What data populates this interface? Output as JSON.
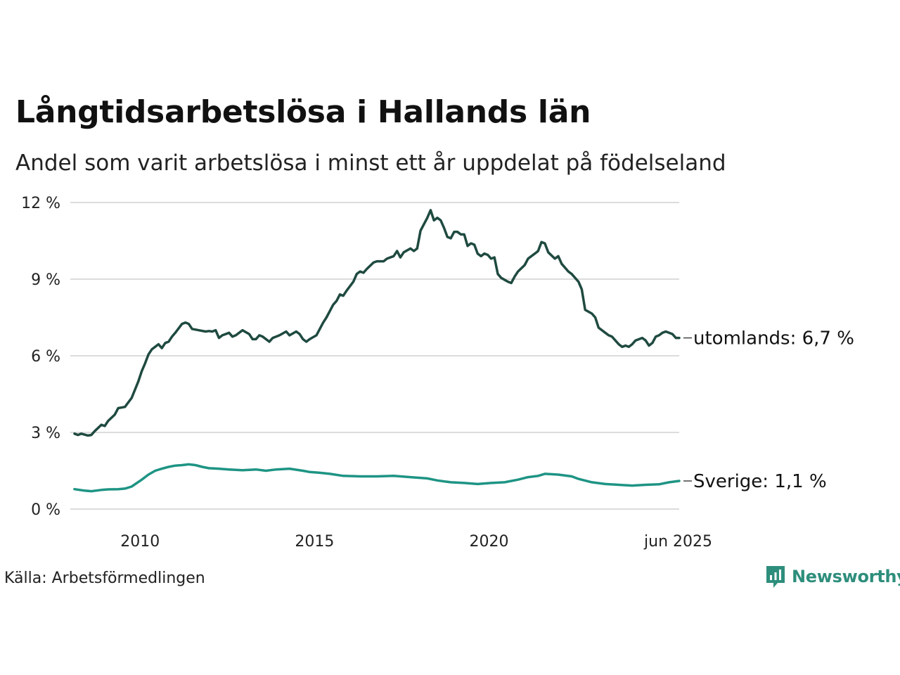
{
  "title": "Långtidsarbetslösa i Hallands län",
  "subtitle": "Andel som varit arbetslösa i minst ett år uppdelat på födelseland",
  "source": "Källa: Arbetsförmedlingen",
  "brand": {
    "name": "Newsworthy",
    "icon": "newsworthy-logo-icon",
    "color": "#2e8e7c"
  },
  "chart_data": {
    "type": "line",
    "xlim": [
      2008.0,
      2025.45
    ],
    "ylim": [
      0,
      12
    ],
    "y_ticks": [
      0,
      3,
      6,
      9,
      12
    ],
    "y_tick_labels": [
      "0 %",
      "3 %",
      "6 %",
      "9 %",
      "12 %"
    ],
    "x_ticks": [
      2010,
      2015,
      2020,
      2025.42
    ],
    "x_tick_labels": [
      "2010",
      "2015",
      "2020",
      "jun 2025"
    ],
    "grid": "horizontal",
    "series": [
      {
        "name": "utomlands",
        "end_label": "utomlands: 6,7 %",
        "color": "#1f4a40",
        "points": [
          [
            2008.0,
            2.95
          ],
          [
            2008.1,
            2.9
          ],
          [
            2008.2,
            2.95
          ],
          [
            2008.4,
            2.88
          ],
          [
            2008.5,
            2.9
          ],
          [
            2008.6,
            3.05
          ],
          [
            2008.8,
            3.3
          ],
          [
            2008.9,
            3.25
          ],
          [
            2009.0,
            3.45
          ],
          [
            2009.2,
            3.7
          ],
          [
            2009.3,
            3.95
          ],
          [
            2009.5,
            4.0
          ],
          [
            2009.7,
            4.35
          ],
          [
            2009.9,
            5.0
          ],
          [
            2010.0,
            5.4
          ],
          [
            2010.1,
            5.7
          ],
          [
            2010.2,
            6.05
          ],
          [
            2010.3,
            6.25
          ],
          [
            2010.5,
            6.45
          ],
          [
            2010.6,
            6.3
          ],
          [
            2010.7,
            6.5
          ],
          [
            2010.8,
            6.55
          ],
          [
            2010.9,
            6.75
          ],
          [
            2011.0,
            6.9
          ],
          [
            2011.2,
            7.25
          ],
          [
            2011.3,
            7.3
          ],
          [
            2011.4,
            7.25
          ],
          [
            2011.5,
            7.05
          ],
          [
            2011.7,
            7.0
          ],
          [
            2011.9,
            6.95
          ],
          [
            2012.0,
            6.97
          ],
          [
            2012.1,
            6.95
          ],
          [
            2012.2,
            7.0
          ],
          [
            2012.3,
            6.7
          ],
          [
            2012.4,
            6.8
          ],
          [
            2012.6,
            6.9
          ],
          [
            2012.7,
            6.75
          ],
          [
            2012.8,
            6.8
          ],
          [
            2013.0,
            7.0
          ],
          [
            2013.2,
            6.85
          ],
          [
            2013.3,
            6.65
          ],
          [
            2013.4,
            6.65
          ],
          [
            2013.5,
            6.8
          ],
          [
            2013.6,
            6.75
          ],
          [
            2013.8,
            6.55
          ],
          [
            2013.9,
            6.7
          ],
          [
            2014.1,
            6.8
          ],
          [
            2014.3,
            6.95
          ],
          [
            2014.4,
            6.8
          ],
          [
            2014.6,
            6.95
          ],
          [
            2014.7,
            6.85
          ],
          [
            2014.8,
            6.65
          ],
          [
            2014.9,
            6.55
          ],
          [
            2015.0,
            6.65
          ],
          [
            2015.2,
            6.8
          ],
          [
            2015.4,
            7.3
          ],
          [
            2015.5,
            7.5
          ],
          [
            2015.7,
            8.0
          ],
          [
            2015.8,
            8.15
          ],
          [
            2015.9,
            8.4
          ],
          [
            2016.0,
            8.35
          ],
          [
            2016.1,
            8.55
          ],
          [
            2016.3,
            8.9
          ],
          [
            2016.4,
            9.2
          ],
          [
            2016.5,
            9.3
          ],
          [
            2016.6,
            9.25
          ],
          [
            2016.7,
            9.4
          ],
          [
            2016.9,
            9.65
          ],
          [
            2017.0,
            9.7
          ],
          [
            2017.2,
            9.7
          ],
          [
            2017.3,
            9.8
          ],
          [
            2017.5,
            9.9
          ],
          [
            2017.6,
            10.1
          ],
          [
            2017.7,
            9.85
          ],
          [
            2017.8,
            10.05
          ],
          [
            2018.0,
            10.2
          ],
          [
            2018.1,
            10.1
          ],
          [
            2018.2,
            10.2
          ],
          [
            2018.3,
            10.9
          ],
          [
            2018.5,
            11.4
          ],
          [
            2018.6,
            11.7
          ],
          [
            2018.7,
            11.3
          ],
          [
            2018.8,
            11.4
          ],
          [
            2018.9,
            11.3
          ],
          [
            2019.0,
            11.0
          ],
          [
            2019.1,
            10.65
          ],
          [
            2019.2,
            10.6
          ],
          [
            2019.3,
            10.85
          ],
          [
            2019.4,
            10.85
          ],
          [
            2019.5,
            10.75
          ],
          [
            2019.6,
            10.75
          ],
          [
            2019.7,
            10.3
          ],
          [
            2019.8,
            10.4
          ],
          [
            2019.9,
            10.35
          ],
          [
            2020.0,
            10.0
          ],
          [
            2020.1,
            9.9
          ],
          [
            2020.2,
            10.0
          ],
          [
            2020.3,
            9.95
          ],
          [
            2020.4,
            9.8
          ],
          [
            2020.5,
            9.85
          ],
          [
            2020.6,
            9.2
          ],
          [
            2020.7,
            9.05
          ],
          [
            2020.9,
            8.9
          ],
          [
            2021.0,
            8.85
          ],
          [
            2021.1,
            9.1
          ],
          [
            2021.2,
            9.3
          ],
          [
            2021.4,
            9.55
          ],
          [
            2021.5,
            9.8
          ],
          [
            2021.7,
            10.0
          ],
          [
            2021.8,
            10.1
          ],
          [
            2021.9,
            10.45
          ],
          [
            2022.0,
            10.4
          ],
          [
            2022.1,
            10.05
          ],
          [
            2022.3,
            9.8
          ],
          [
            2022.4,
            9.9
          ],
          [
            2022.5,
            9.6
          ],
          [
            2022.7,
            9.3
          ],
          [
            2022.8,
            9.2
          ],
          [
            2023.0,
            8.9
          ],
          [
            2023.1,
            8.6
          ],
          [
            2023.2,
            7.8
          ],
          [
            2023.4,
            7.65
          ],
          [
            2023.5,
            7.5
          ],
          [
            2023.6,
            7.1
          ],
          [
            2023.8,
            6.9
          ],
          [
            2023.9,
            6.8
          ],
          [
            2024.0,
            6.75
          ],
          [
            2024.1,
            6.6
          ],
          [
            2024.2,
            6.45
          ],
          [
            2024.3,
            6.35
          ],
          [
            2024.4,
            6.4
          ],
          [
            2024.5,
            6.35
          ],
          [
            2024.6,
            6.45
          ],
          [
            2024.7,
            6.6
          ],
          [
            2024.9,
            6.7
          ],
          [
            2025.0,
            6.6
          ],
          [
            2025.1,
            6.4
          ],
          [
            2025.2,
            6.5
          ],
          [
            2025.3,
            6.75
          ],
          [
            2025.4,
            6.8
          ],
          [
            2025.5,
            6.9
          ],
          [
            2025.6,
            6.95
          ],
          [
            2025.8,
            6.85
          ],
          [
            2025.9,
            6.7
          ],
          [
            2026.0,
            6.7
          ]
        ]
      },
      {
        "name": "Sverige",
        "end_label": "Sverige: 1,1 %",
        "color": "#1e9484",
        "points": [
          [
            2008.0,
            0.78
          ],
          [
            2008.3,
            0.72
          ],
          [
            2008.5,
            0.7
          ],
          [
            2008.8,
            0.75
          ],
          [
            2009.0,
            0.77
          ],
          [
            2009.3,
            0.78
          ],
          [
            2009.5,
            0.8
          ],
          [
            2009.7,
            0.88
          ],
          [
            2010.0,
            1.15
          ],
          [
            2010.2,
            1.35
          ],
          [
            2010.4,
            1.5
          ],
          [
            2010.6,
            1.58
          ],
          [
            2010.8,
            1.65
          ],
          [
            2011.0,
            1.7
          ],
          [
            2011.2,
            1.72
          ],
          [
            2011.4,
            1.75
          ],
          [
            2011.6,
            1.72
          ],
          [
            2011.8,
            1.65
          ],
          [
            2012.0,
            1.6
          ],
          [
            2012.3,
            1.58
          ],
          [
            2012.6,
            1.55
          ],
          [
            2013.0,
            1.52
          ],
          [
            2013.4,
            1.55
          ],
          [
            2013.7,
            1.5
          ],
          [
            2014.0,
            1.55
          ],
          [
            2014.4,
            1.58
          ],
          [
            2014.8,
            1.5
          ],
          [
            2015.0,
            1.45
          ],
          [
            2015.3,
            1.42
          ],
          [
            2015.6,
            1.38
          ],
          [
            2016.0,
            1.3
          ],
          [
            2016.5,
            1.28
          ],
          [
            2017.0,
            1.28
          ],
          [
            2017.5,
            1.3
          ],
          [
            2018.0,
            1.25
          ],
          [
            2018.5,
            1.2
          ],
          [
            2018.8,
            1.12
          ],
          [
            2019.2,
            1.05
          ],
          [
            2019.6,
            1.02
          ],
          [
            2020.0,
            0.98
          ],
          [
            2020.4,
            1.02
          ],
          [
            2020.8,
            1.05
          ],
          [
            2021.2,
            1.15
          ],
          [
            2021.5,
            1.25
          ],
          [
            2021.8,
            1.3
          ],
          [
            2022.0,
            1.38
          ],
          [
            2022.4,
            1.35
          ],
          [
            2022.8,
            1.28
          ],
          [
            2023.0,
            1.18
          ],
          [
            2023.4,
            1.05
          ],
          [
            2023.8,
            0.98
          ],
          [
            2024.2,
            0.95
          ],
          [
            2024.6,
            0.92
          ],
          [
            2025.0,
            0.95
          ],
          [
            2025.4,
            0.97
          ],
          [
            2025.7,
            1.05
          ],
          [
            2026.0,
            1.1
          ]
        ]
      }
    ]
  }
}
